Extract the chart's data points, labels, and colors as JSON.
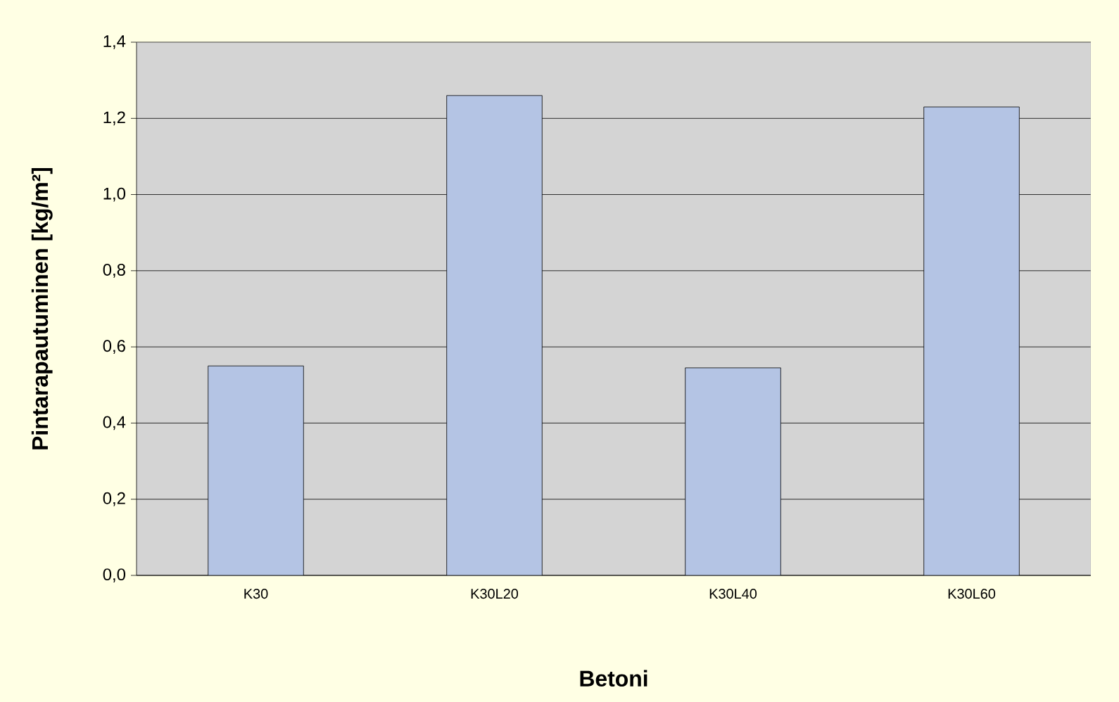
{
  "chart_data": {
    "type": "bar",
    "xlabel": "Betoni",
    "ylabel": "Pintarapautuminen [kg/m²]",
    "categories": [
      "K30",
      "K30L20",
      "K30L40",
      "K30L60"
    ],
    "values": [
      0.55,
      1.26,
      0.545,
      1.23
    ],
    "color": "#b4c4e4",
    "ylim": [
      0,
      1.4
    ],
    "yticks": [
      {
        "value": 0,
        "label": "0,0"
      },
      {
        "value": 0.2,
        "label": "0,2"
      },
      {
        "value": 0.4,
        "label": "0,4"
      },
      {
        "value": 0.6,
        "label": "0,6"
      },
      {
        "value": 0.8,
        "label": "0,8"
      },
      {
        "value": 1.0,
        "label": "1,0"
      },
      {
        "value": 1.2,
        "label": "1,2"
      },
      {
        "value": 1.4,
        "label": "1,4"
      }
    ],
    "grid": "y"
  }
}
